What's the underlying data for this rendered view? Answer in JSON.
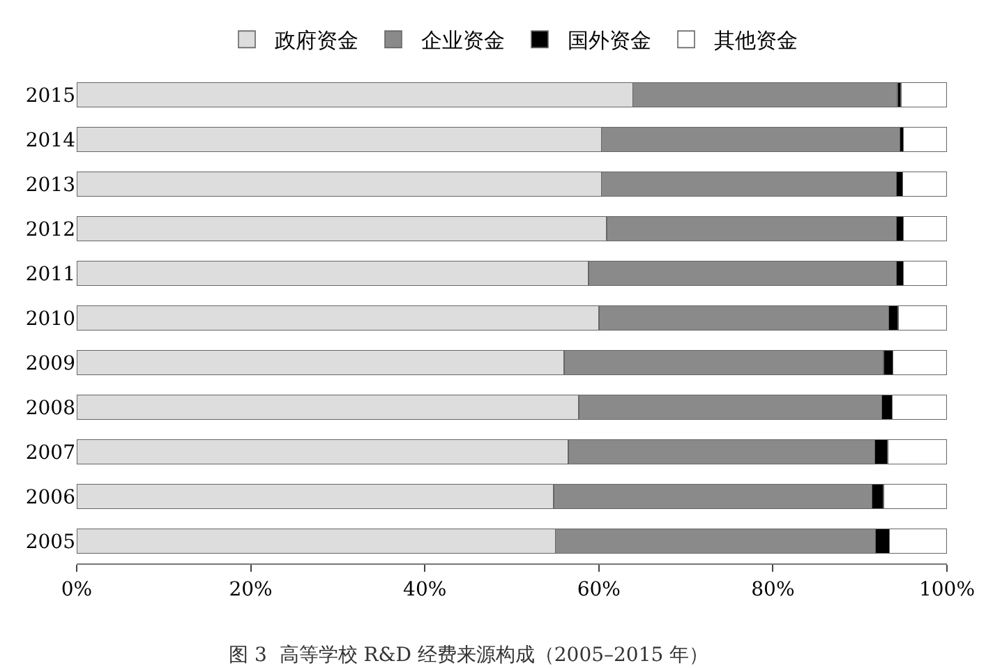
{
  "chart_data": {
    "type": "bar",
    "orientation": "horizontal",
    "stacked": true,
    "title": "图 3  高等学校 R&D 经费来源构成（2005–2015 年）",
    "categories": [
      "2015",
      "2014",
      "2013",
      "2012",
      "2011",
      "2010",
      "2009",
      "2008",
      "2007",
      "2006",
      "2005"
    ],
    "series": [
      {
        "name": "政府资金",
        "color": "#dddddd",
        "values": [
          63.9,
          60.3,
          60.3,
          60.9,
          58.8,
          60.0,
          56.0,
          57.7,
          56.5,
          54.8,
          55.0
        ]
      },
      {
        "name": "企业资金",
        "color": "#8a8a8a",
        "values": [
          30.4,
          34.3,
          33.9,
          33.3,
          35.4,
          33.3,
          36.7,
          34.8,
          35.2,
          36.6,
          36.8
        ]
      },
      {
        "name": "国外资金",
        "color": "#000000",
        "values": [
          0.4,
          0.4,
          0.7,
          0.8,
          0.8,
          1.1,
          1.1,
          1.2,
          1.5,
          1.3,
          1.6
        ]
      },
      {
        "name": "其他资金",
        "color": "#ffffff",
        "values": [
          5.3,
          5.0,
          5.1,
          5.0,
          5.0,
          5.6,
          6.2,
          6.3,
          6.8,
          7.3,
          6.6
        ]
      }
    ],
    "xlim": [
      0,
      100
    ],
    "xticks": [
      {
        "value": 0,
        "label": "0%"
      },
      {
        "value": 20,
        "label": "20%"
      },
      {
        "value": 40,
        "label": "40%"
      },
      {
        "value": 60,
        "label": "60%"
      },
      {
        "value": 80,
        "label": "80%"
      },
      {
        "value": 100,
        "label": "100%"
      }
    ],
    "grid": false,
    "legend": "top"
  }
}
